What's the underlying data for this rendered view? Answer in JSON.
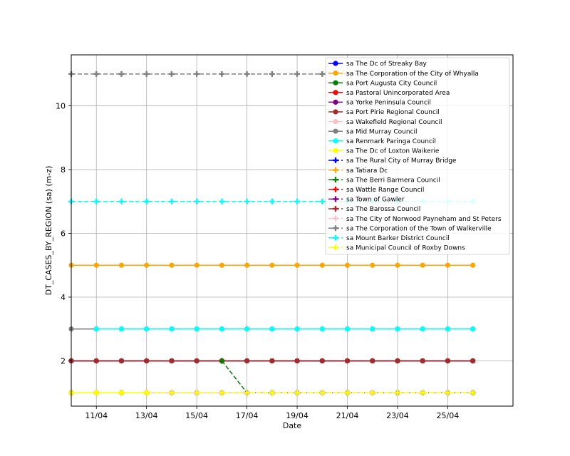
{
  "chart_data": {
    "type": "line",
    "xlabel": "Date",
    "ylabel": "DT_CASES_BY_REGION (sa) (m-z)",
    "x_ticks": [
      "11/04",
      "13/04",
      "15/04",
      "17/04",
      "19/04",
      "21/04",
      "23/04",
      "25/04"
    ],
    "y_ticks": [
      "2",
      "4",
      "6",
      "8",
      "10"
    ],
    "xlim": [
      0,
      17.6
    ],
    "ylim": [
      0.58,
      11.6
    ],
    "grid": true,
    "legend_position": "top-right",
    "dates": [
      "10/04",
      "11/04",
      "12/04",
      "13/04",
      "14/04",
      "15/04",
      "16/04",
      "17/04",
      "18/04",
      "19/04",
      "20/04",
      "21/04",
      "22/04",
      "23/04",
      "24/04",
      "25/04",
      "26/04"
    ],
    "series": [
      {
        "name": "sa The Dc of Streaky Bay",
        "color": "#0000ff",
        "marker": "circle",
        "dash": false,
        "values": [
          1,
          1,
          1,
          1,
          1,
          1,
          1,
          1,
          1,
          1,
          1,
          1,
          1,
          1,
          1,
          1,
          1
        ]
      },
      {
        "name": "sa The Corporation of the City of Whyalla",
        "color": "#ffa500",
        "marker": "circle",
        "dash": false,
        "values": [
          5,
          5,
          5,
          5,
          5,
          5,
          5,
          5,
          5,
          5,
          5,
          5,
          5,
          5,
          5,
          5,
          5
        ]
      },
      {
        "name": "sa Port Augusta City Council",
        "color": "#008000",
        "marker": "circle",
        "dash": false,
        "values": [
          2,
          2,
          2,
          2,
          2,
          2,
          2,
          2,
          2,
          2,
          2,
          2,
          2,
          2,
          2,
          2,
          2
        ]
      },
      {
        "name": "sa Pastoral Unincorporated Area",
        "color": "#ff0000",
        "marker": "circle",
        "dash": false,
        "values": [
          2,
          2,
          2,
          2,
          2,
          2,
          2,
          2,
          2,
          2,
          2,
          2,
          2,
          2,
          2,
          2,
          2
        ]
      },
      {
        "name": "sa Yorke Peninsula Council",
        "color": "#800080",
        "marker": "circle",
        "dash": false,
        "values": [
          2,
          2,
          2,
          2,
          2,
          2,
          2,
          2,
          2,
          2,
          2,
          2,
          2,
          2,
          2,
          2,
          2
        ]
      },
      {
        "name": "sa Port Pirie Regional Council",
        "color": "#a52a2a",
        "marker": "circle",
        "dash": false,
        "values": [
          2,
          2,
          2,
          2,
          2,
          2,
          2,
          2,
          2,
          2,
          2,
          2,
          2,
          2,
          2,
          2,
          2
        ]
      },
      {
        "name": "sa Wakefield Regional Council",
        "color": "#ffc0cb",
        "marker": "circle",
        "dash": false,
        "values": [
          1,
          1,
          1,
          1,
          1,
          1,
          1,
          1,
          1,
          1,
          1,
          1,
          1,
          1,
          1,
          1,
          1
        ]
      },
      {
        "name": "sa Mid Murray Council",
        "color": "#808080",
        "marker": "circle",
        "dash": false,
        "values": [
          3,
          3,
          3,
          3,
          3,
          3,
          3,
          3,
          3,
          3,
          3,
          3,
          3,
          3,
          3,
          3,
          3
        ]
      },
      {
        "name": "sa Renmark Paringa Council",
        "color": "#00ffff",
        "marker": "circle",
        "dash": false,
        "values": [
          null,
          3,
          3,
          3,
          3,
          3,
          3,
          3,
          3,
          3,
          3,
          3,
          3,
          3,
          3,
          3,
          3
        ]
      },
      {
        "name": "sa The Dc of Loxton Waikerie",
        "color": "#ffff00",
        "marker": "circle",
        "dash": false,
        "values": [
          1,
          1,
          1,
          1,
          null,
          null,
          null,
          null,
          null,
          null,
          null,
          null,
          null,
          null,
          null,
          null,
          null
        ]
      },
      {
        "name": "sa The Rural City of Murray Bridge",
        "color": "#0000ff",
        "marker": "plus",
        "dash": true,
        "values": [
          1,
          1,
          1,
          1,
          1,
          1,
          1,
          1,
          1,
          1,
          1,
          1,
          1,
          1,
          1,
          1,
          1
        ]
      },
      {
        "name": "sa Tatiara Dc",
        "color": "#ffa500",
        "marker": "plus",
        "dash": true,
        "values": [
          1,
          1,
          1,
          1,
          1,
          1,
          1,
          1,
          1,
          1,
          1,
          1,
          1,
          1,
          1,
          1,
          1
        ]
      },
      {
        "name": "sa The Berri Barmera Council",
        "color": "#008000",
        "marker": "plus",
        "dash": true,
        "values": [
          null,
          null,
          null,
          null,
          null,
          null,
          2,
          1,
          1,
          1,
          1,
          1,
          1,
          1,
          1,
          1,
          1
        ]
      },
      {
        "name": "sa Wattle Range Council",
        "color": "#ff0000",
        "marker": "plus",
        "dash": true,
        "values": [
          null,
          null,
          null,
          null,
          null,
          null,
          null,
          null,
          null,
          null,
          null,
          null,
          null,
          null,
          null,
          null,
          null
        ]
      },
      {
        "name": "sa Town of Gawler",
        "color": "#800080",
        "marker": "plus",
        "dash": true,
        "values": [
          null,
          null,
          null,
          null,
          null,
          null,
          null,
          null,
          null,
          null,
          null,
          null,
          null,
          null,
          null,
          null,
          null
        ]
      },
      {
        "name": "sa The Barossa Council",
        "color": "#a52a2a",
        "marker": "plus",
        "dash": true,
        "values": [
          null,
          null,
          null,
          null,
          null,
          null,
          null,
          null,
          null,
          null,
          null,
          null,
          null,
          null,
          null,
          null,
          null
        ]
      },
      {
        "name": "sa The City of Norwood Payneham and St Peters",
        "color": "#ffc0cb",
        "marker": "plus",
        "dash": true,
        "values": [
          null,
          null,
          null,
          null,
          null,
          null,
          null,
          null,
          null,
          null,
          null,
          null,
          null,
          null,
          null,
          null,
          null
        ]
      },
      {
        "name": "sa The Corporation of the Town of Walkerville",
        "color": "#808080",
        "marker": "plus",
        "dash": true,
        "values": [
          11,
          11,
          11,
          11,
          11,
          11,
          11,
          11,
          11,
          11,
          11,
          11,
          11,
          11,
          11,
          11,
          11
        ]
      },
      {
        "name": "sa Mount Barker District Council",
        "color": "#00ffff",
        "marker": "plus",
        "dash": true,
        "values": [
          7,
          7,
          7,
          7,
          7,
          7,
          7,
          7,
          7,
          7,
          7,
          7,
          7,
          7,
          7,
          7,
          7
        ]
      },
      {
        "name": "sa Municipal Council of Roxby Downs",
        "color": "#ffff00",
        "marker": "plus",
        "dash": true,
        "values": [
          1,
          1,
          1,
          1,
          1,
          1,
          1,
          1,
          1,
          1,
          1,
          1,
          1,
          1,
          1,
          1,
          1
        ]
      }
    ]
  }
}
